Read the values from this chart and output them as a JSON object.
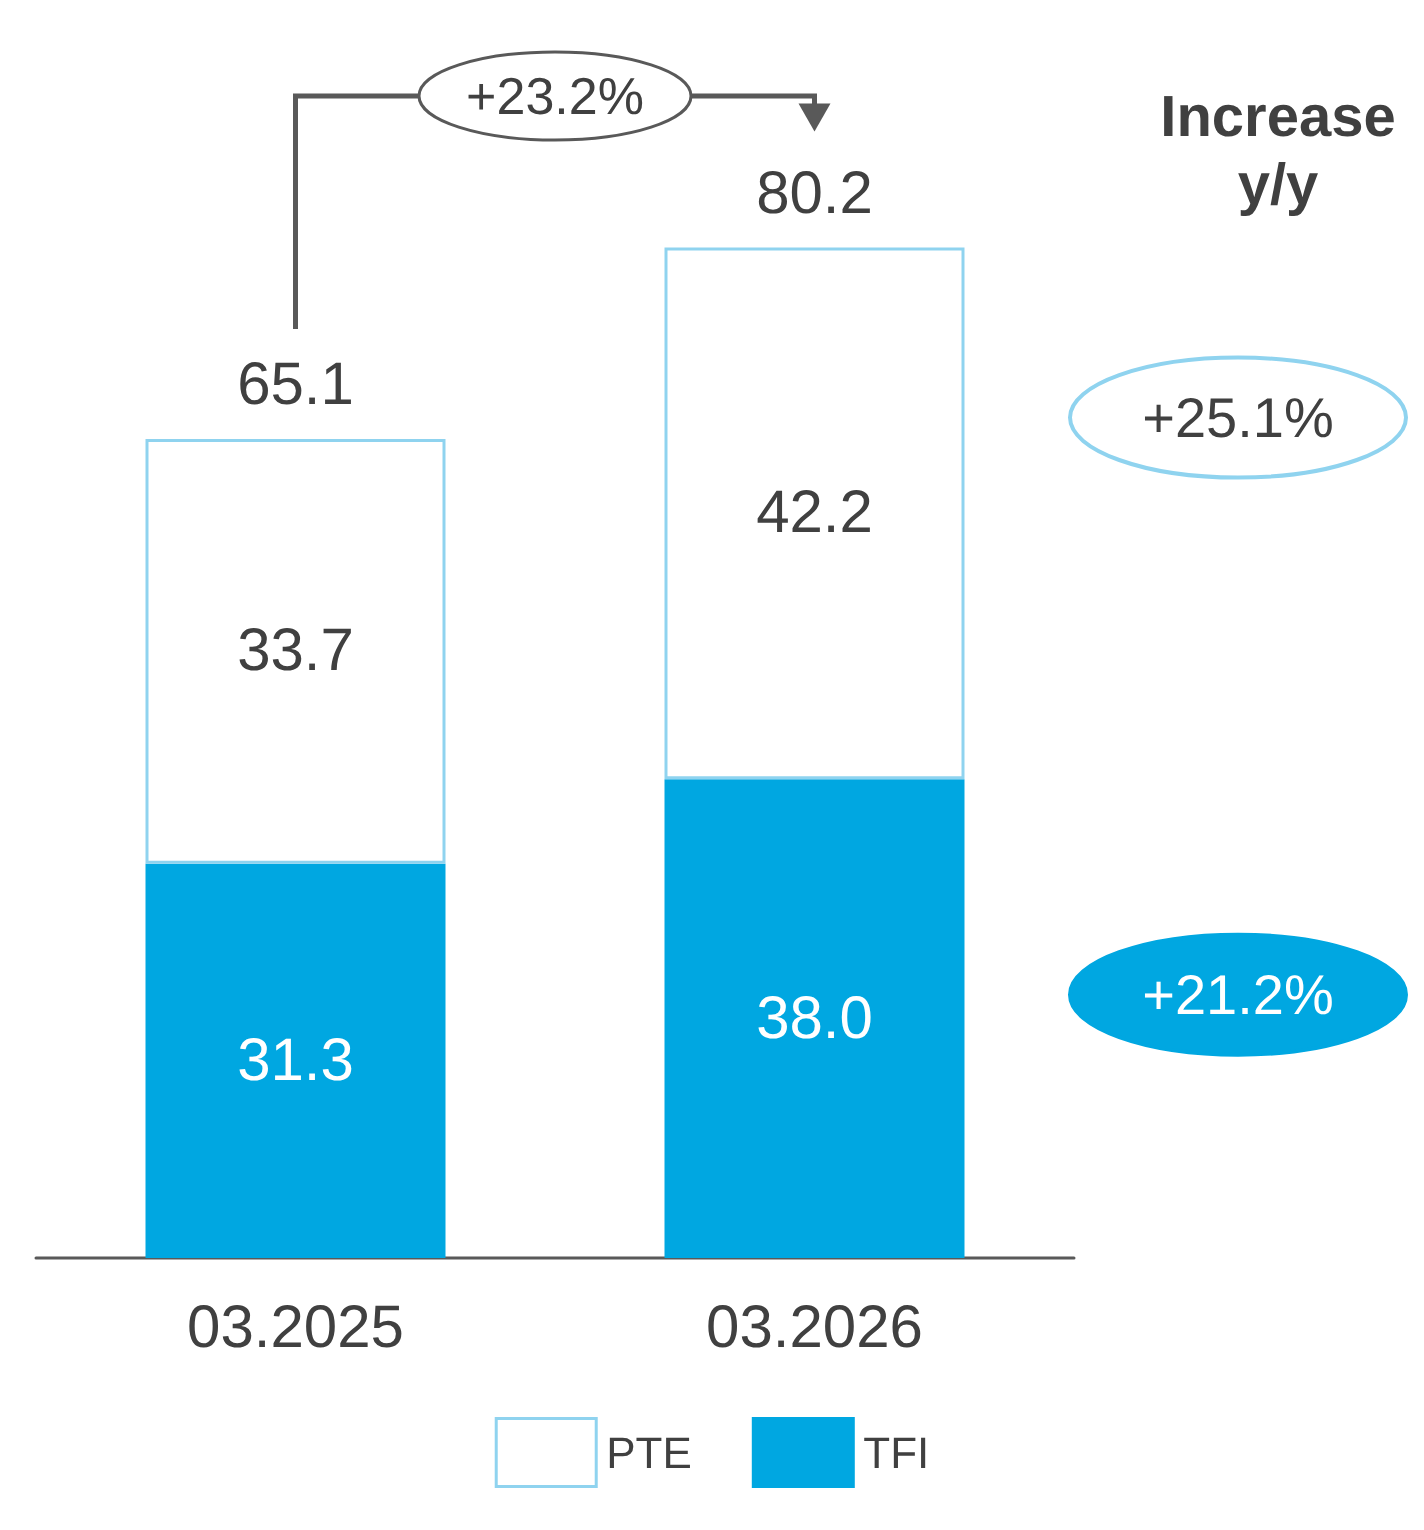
{
  "chart_data": {
    "type": "bar",
    "stacked": true,
    "categories": [
      "03.2025",
      "03.2026"
    ],
    "series": [
      {
        "name": "TFI",
        "color": "#00a7e1",
        "values": [
          31.3,
          38.0
        ],
        "value_labels": [
          "31.3",
          "38.0"
        ]
      },
      {
        "name": "PTE",
        "color": "#ffffff",
        "values": [
          33.7,
          42.2
        ],
        "value_labels": [
          "33.7",
          "42.2"
        ]
      }
    ],
    "totals": [
      "65.1",
      "80.2"
    ],
    "legend": "bottom",
    "annotations": [
      "+23.2%",
      "Increase\ny/y",
      "+25.1%",
      "+21.2%"
    ]
  }
}
